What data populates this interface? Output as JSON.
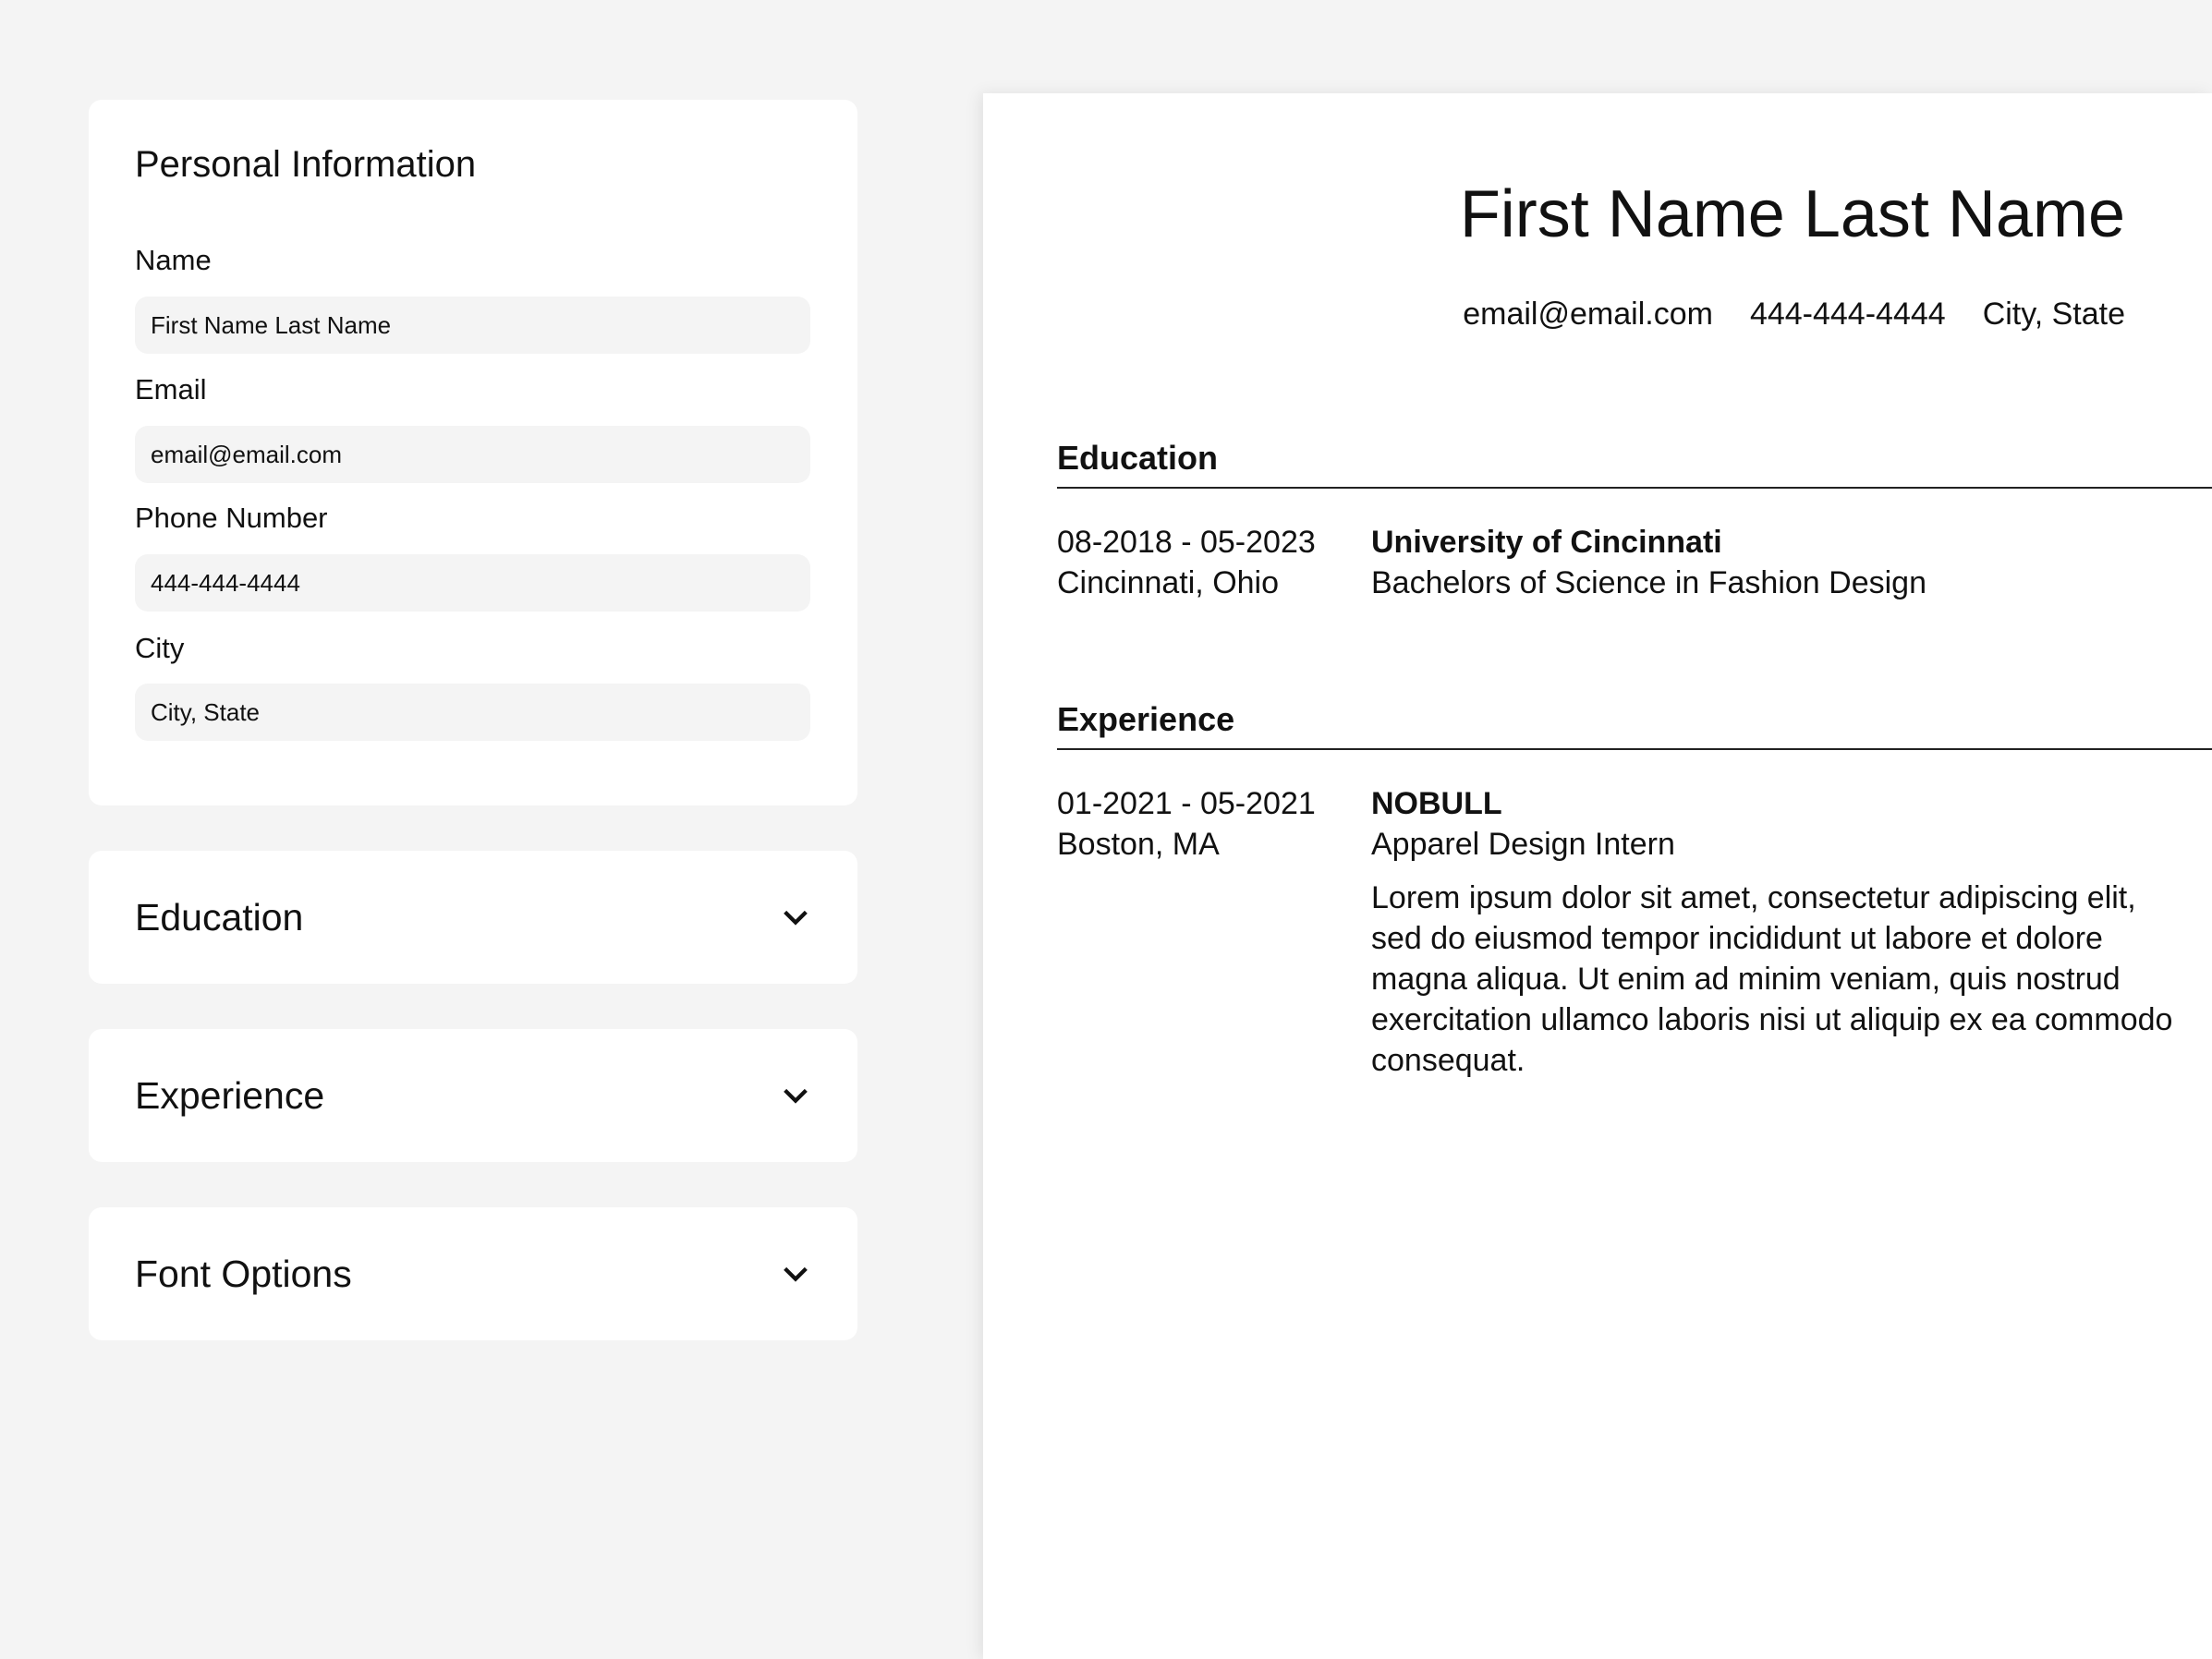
{
  "personal": {
    "title": "Personal Information",
    "fields": [
      {
        "label": "Name",
        "value": "First Name Last Name"
      },
      {
        "label": "Email",
        "value": "email@email.com"
      },
      {
        "label": "Phone Number",
        "value": "444-444-4444"
      },
      {
        "label": "City",
        "value": "City, State"
      }
    ]
  },
  "sections": [
    {
      "label": "Education",
      "icon": "chevron-down-icon"
    },
    {
      "label": "Experience",
      "icon": "chevron-down-icon"
    },
    {
      "label": "Font Options",
      "icon": "chevron-down-icon"
    }
  ],
  "resume": {
    "name": "First Name Last Name",
    "email": "email@email.com",
    "phone": "444-444-4444",
    "location": "City, State",
    "education": {
      "heading": "Education",
      "dates": "08-2018 - 05-2023",
      "place": "Cincinnati, Ohio",
      "school": "University of Cincinnati",
      "degree": "Bachelors of Science in Fashion Design"
    },
    "experience": {
      "heading": "Experience",
      "dates": "01-2021 - 05-2021",
      "place": "Boston, MA",
      "company": "NOBULL",
      "position": "Apparel Design Intern",
      "description": "Lorem ipsum dolor sit amet, consectetur adipiscing elit, sed do eiusmod tempor incididunt ut labore et dolore magna aliqua. Ut enim ad minim veniam, quis nostrud exercitation ullamco laboris nisi ut aliquip ex ea commodo consequat."
    }
  }
}
